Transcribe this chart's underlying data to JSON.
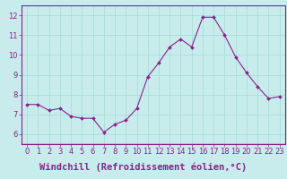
{
  "x": [
    0,
    1,
    2,
    3,
    4,
    5,
    6,
    7,
    8,
    9,
    10,
    11,
    12,
    13,
    14,
    15,
    16,
    17,
    18,
    19,
    20,
    21,
    22,
    23
  ],
  "y": [
    7.5,
    7.5,
    7.2,
    7.3,
    6.9,
    6.8,
    6.8,
    6.1,
    6.5,
    6.7,
    7.3,
    8.9,
    9.6,
    10.4,
    10.8,
    10.4,
    11.9,
    11.9,
    11.0,
    9.9,
    9.1,
    8.4,
    7.8,
    7.9
  ],
  "line_color": "#882288",
  "marker": "D",
  "marker_size": 2.0,
  "bg_color": "#c8ecec",
  "grid_color": "#aadddd",
  "xlabel": "Windchill (Refroidissement éolien,°C)",
  "xlabel_fontsize": 7.5,
  "ylim": [
    5.5,
    12.5
  ],
  "xlim": [
    -0.5,
    23.5
  ],
  "yticks": [
    6,
    7,
    8,
    9,
    10,
    11,
    12
  ],
  "xticks": [
    0,
    1,
    2,
    3,
    4,
    5,
    6,
    7,
    8,
    9,
    10,
    11,
    12,
    13,
    14,
    15,
    16,
    17,
    18,
    19,
    20,
    21,
    22,
    23
  ],
  "tick_color": "#882288",
  "tick_fontsize": 6.0,
  "spine_color": "#882288",
  "spine_bottom_color": "#882288"
}
